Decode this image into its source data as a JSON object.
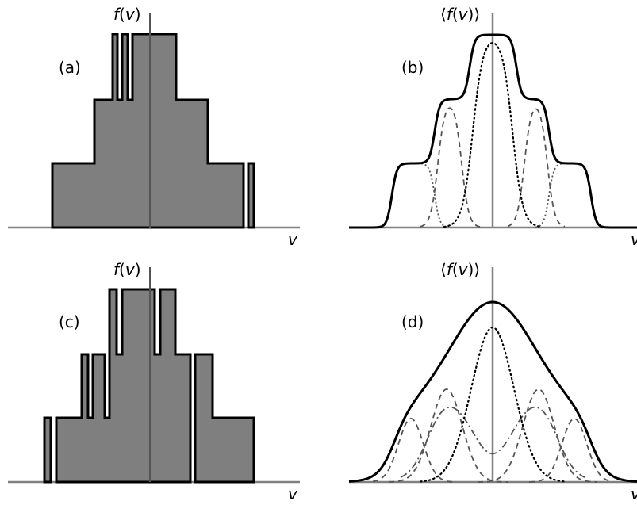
{
  "panels": [
    {
      "id": "a",
      "label": "(a)",
      "ylabel": "f(v)",
      "xlabel": "v",
      "kind": "histogram"
    },
    {
      "id": "b",
      "label": "(b)",
      "ylabel": "⟨f(v)⟩",
      "xlabel": "v",
      "kind": "smooth"
    },
    {
      "id": "c",
      "label": "(c)",
      "ylabel": "f(v)",
      "xlabel": "v",
      "kind": "histogram"
    },
    {
      "id": "d",
      "label": "(d)",
      "ylabel": "⟨f(v)⟩",
      "xlabel": "v",
      "kind": "smooth"
    }
  ],
  "colors": {
    "fill": "#7f7f7f",
    "outline": "#000000",
    "axis": "#808080",
    "component": "#555555",
    "dotted": "#000000",
    "background": "#ffffff"
  }
}
